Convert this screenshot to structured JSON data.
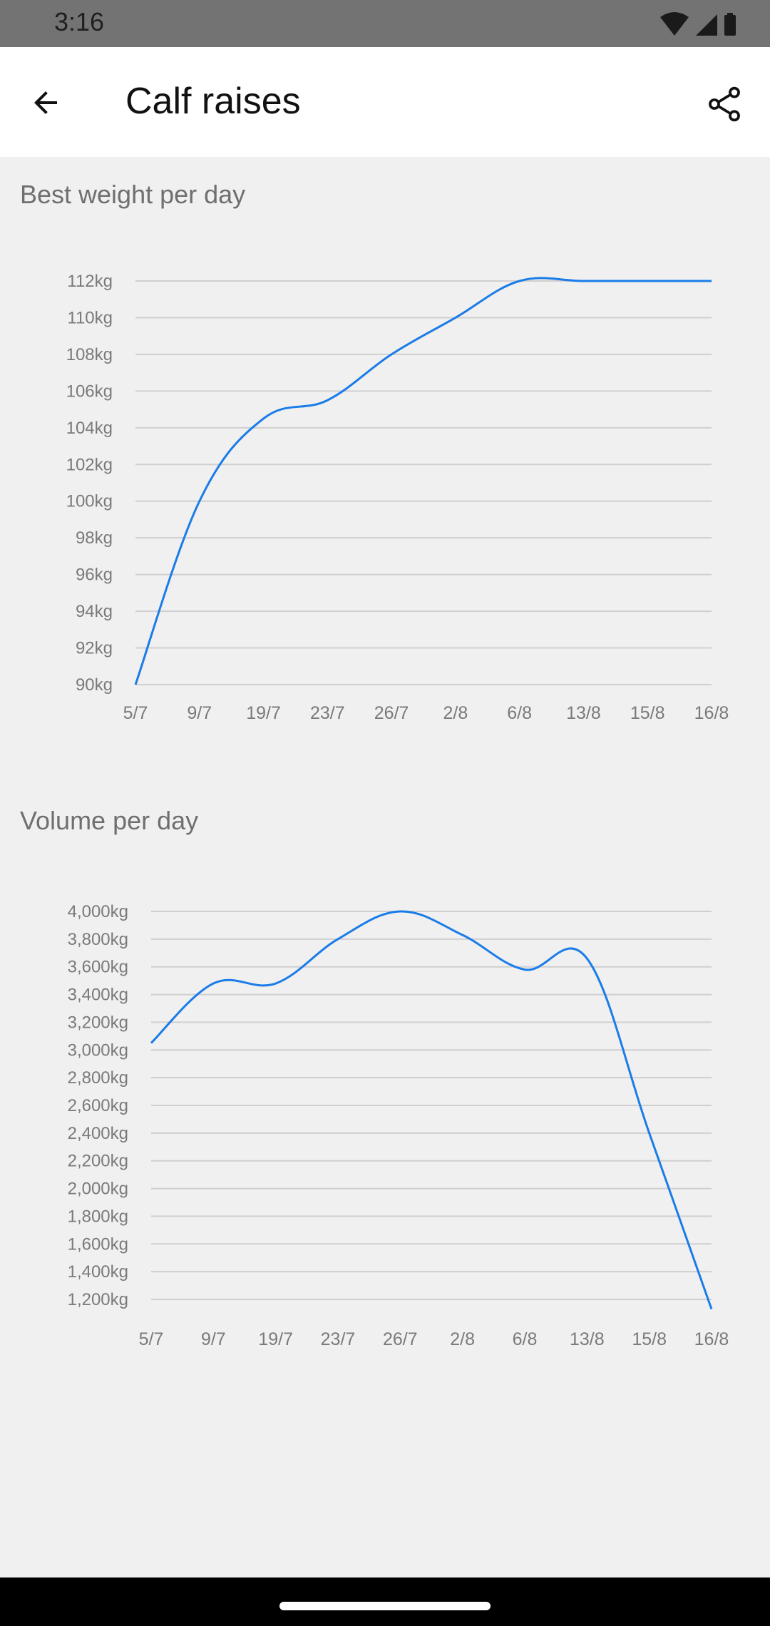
{
  "status_bar": {
    "time": "3:16"
  },
  "app_bar": {
    "title": "Calf raises"
  },
  "icons": {
    "back": "arrow-back-icon",
    "share": "share-icon"
  },
  "colors": {
    "line": "#1a7ce8",
    "grid": "#cfcfcf",
    "background": "#f0f0f0"
  },
  "chart_data": [
    {
      "type": "line",
      "title": "Best weight per day",
      "categories": [
        "5/7",
        "9/7",
        "19/7",
        "23/7",
        "26/7",
        "2/8",
        "6/8",
        "13/8",
        "15/8",
        "16/8"
      ],
      "values": [
        90,
        100,
        104.5,
        105.5,
        108,
        110,
        112,
        112,
        112,
        112
      ],
      "y_ticks": [
        "90kg",
        "92kg",
        "94kg",
        "96kg",
        "98kg",
        "100kg",
        "102kg",
        "104kg",
        "106kg",
        "108kg",
        "110kg",
        "112kg"
      ],
      "ylim": [
        90,
        112
      ],
      "series_color": "#1a7ce8",
      "grid": true
    },
    {
      "type": "line",
      "title": "Volume per day",
      "categories": [
        "5/7",
        "9/7",
        "19/7",
        "23/7",
        "26/7",
        "2/8",
        "6/8",
        "13/8",
        "15/8",
        "16/8"
      ],
      "values": [
        3050,
        3480,
        3480,
        3800,
        4000,
        3830,
        3580,
        3660,
        2400,
        1130
      ],
      "y_ticks": [
        "1,200kg",
        "1,400kg",
        "1,600kg",
        "1,800kg",
        "2,000kg",
        "2,200kg",
        "2,400kg",
        "2,600kg",
        "2,800kg",
        "3,000kg",
        "3,200kg",
        "3,400kg",
        "3,600kg",
        "3,800kg",
        "4,000kg"
      ],
      "ylim": [
        1200,
        4000
      ],
      "series_color": "#1a7ce8",
      "grid": true
    }
  ]
}
